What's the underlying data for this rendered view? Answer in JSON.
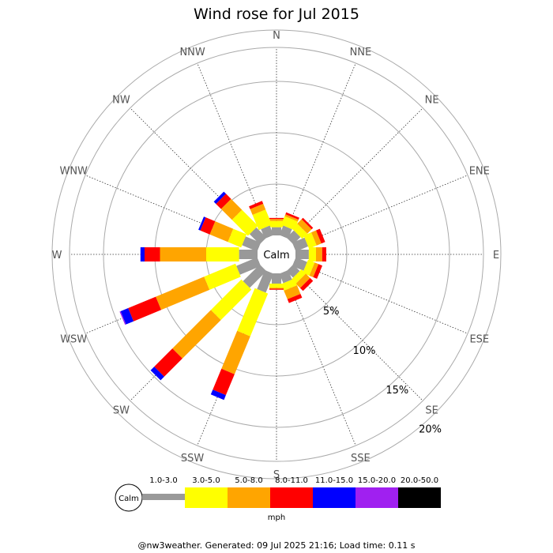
{
  "chart_data": {
    "type": "wind_rose",
    "title": "Wind rose for Jul 2015",
    "directions": [
      "N",
      "NNE",
      "NE",
      "ENE",
      "E",
      "ESE",
      "SE",
      "SSE",
      "S",
      "SSW",
      "SW",
      "WSW",
      "W",
      "WNW",
      "NW",
      "NNW"
    ],
    "ring_labels": [
      "5%",
      "10%",
      "15%",
      "20%"
    ],
    "rings_percent": [
      5,
      10,
      15,
      20
    ],
    "calm_label": "Calm",
    "speed_unit": "mph",
    "speed_bins": [
      {
        "label": "1.0-3.0",
        "color": "#999999"
      },
      {
        "label": "3.0-5.0",
        "color": "#ffff00"
      },
      {
        "label": "5.0-8.0",
        "color": "#ffa500"
      },
      {
        "label": "8.0-11.0",
        "color": "#ff0000"
      },
      {
        "label": "11.0-15.0",
        "color": "#0000ff"
      },
      {
        "label": "15.0-20.0",
        "color": "#a020f0"
      },
      {
        "label": "20.0-50.0",
        "color": "#000000"
      }
    ],
    "frequencies_cumulative_percent": [
      [
        0.8,
        1.4,
        1.6,
        1.7,
        1.7,
        1.7,
        1.7
      ],
      [
        1.0,
        1.9,
        2.1,
        2.3,
        2.3,
        2.3,
        2.3
      ],
      [
        1.0,
        1.7,
        2.3,
        2.5,
        2.5,
        2.5,
        2.5
      ],
      [
        1.3,
        2.1,
        2.6,
        3.0,
        3.0,
        3.0,
        3.0
      ],
      [
        1.3,
        2.0,
        2.6,
        3.0,
        3.0,
        3.0,
        3.0
      ],
      [
        1.2,
        1.9,
        2.3,
        2.7,
        2.7,
        2.7,
        2.7
      ],
      [
        0.9,
        1.5,
        2.1,
        2.5,
        2.5,
        2.5,
        2.5
      ],
      [
        1.0,
        1.7,
        2.6,
        3.0,
        3.0,
        3.0,
        3.0
      ],
      [
        1.0,
        1.4,
        1.5,
        1.6,
        1.6,
        1.6,
        1.6
      ],
      [
        2.0,
        6.5,
        10.5,
        12.7,
        13.2,
        13.2,
        13.2
      ],
      [
        2.3,
        6.5,
        11.8,
        14.3,
        14.8,
        14.8,
        14.8
      ],
      [
        2.2,
        5.5,
        10.6,
        13.5,
        14.3,
        14.4,
        14.4
      ],
      [
        1.8,
        5.0,
        9.5,
        11.0,
        11.4,
        11.4,
        11.4
      ],
      [
        1.6,
        3.0,
        4.9,
        5.9,
        6.1,
        6.1,
        6.1
      ],
      [
        1.4,
        3.6,
        5.1,
        5.8,
        6.1,
        6.1,
        6.1
      ],
      [
        1.0,
        2.6,
        3.2,
        3.5,
        3.5,
        3.5,
        3.5
      ]
    ],
    "grid": true
  },
  "footer": "@nw3weather. Generated: 09 Jul 2025 21:16; Load time: 0.11 s"
}
